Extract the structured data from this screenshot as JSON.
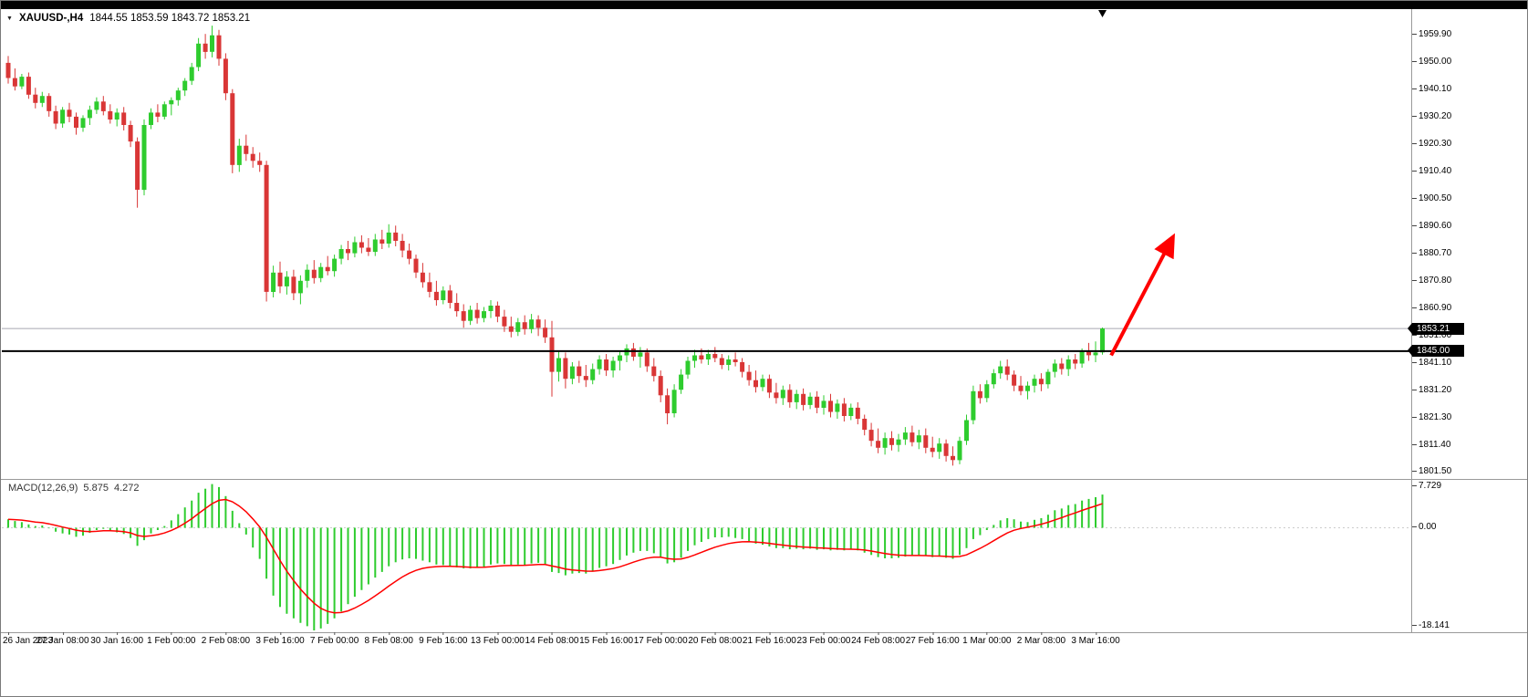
{
  "header": {
    "symbol_period": "XAUUSD-,H4",
    "ohlc": "1844.55 1853.59 1843.72 1853.21"
  },
  "badges": {
    "bid": "1853.21",
    "line": "1845.00"
  },
  "macd_panel": {
    "label": "MACD(12,26,9)",
    "value_main": "5.875",
    "value_signal": "4.272",
    "scale_top": "7.729",
    "scale_zero": "0.00",
    "scale_bottom": "-18.141"
  },
  "chart_data": {
    "type": "candlestick",
    "symbol": "XAUUSD-",
    "timeframe": "H4",
    "title": "XAUUSD-,H4",
    "last_bar": {
      "open": 1844.55,
      "high": 1853.59,
      "low": 1843.72,
      "close": 1853.21
    },
    "price_axis": {
      "min": 1800.0,
      "max": 1968.0,
      "labels": [
        "1959.90",
        "1950.00",
        "1940.10",
        "1930.20",
        "1920.30",
        "1910.40",
        "1900.50",
        "1890.60",
        "1880.70",
        "1870.80",
        "1860.90",
        "1851.00",
        "1841.10",
        "1831.20",
        "1821.30",
        "1811.40",
        "1801.50"
      ]
    },
    "bid_line": 1853.21,
    "hline": 1845.0,
    "arrow": {
      "from_bar": 162.3,
      "from_price": 1843.5,
      "to_bar": 171.3,
      "to_price": 1886.0
    },
    "colors": {
      "bull": "#2ecc2e",
      "bear": "#d93636",
      "macd_hist": "#2ecc2e",
      "signal": "#ff0000",
      "arrow": "#ff0000",
      "hline": "#000000",
      "bid": "#a8a8b0"
    },
    "time_labels": [
      {
        "bar": 0,
        "text": "26 Jan 2023"
      },
      {
        "bar": 8,
        "text": "27 Jan 08:00"
      },
      {
        "bar": 16,
        "text": "30 Jan 16:00"
      },
      {
        "bar": 24,
        "text": "1 Feb 00:00"
      },
      {
        "bar": 32,
        "text": "2 Feb 08:00"
      },
      {
        "bar": 40,
        "text": "3 Feb 16:00"
      },
      {
        "bar": 48,
        "text": "7 Feb 00:00"
      },
      {
        "bar": 56,
        "text": "8 Feb 08:00"
      },
      {
        "bar": 64,
        "text": "9 Feb 16:00"
      },
      {
        "bar": 72,
        "text": "13 Feb 00:00"
      },
      {
        "bar": 80,
        "text": "14 Feb 08:00"
      },
      {
        "bar": 88,
        "text": "15 Feb 16:00"
      },
      {
        "bar": 96,
        "text": "17 Feb 00:00"
      },
      {
        "bar": 104,
        "text": "20 Feb 08:00"
      },
      {
        "bar": 112,
        "text": "21 Feb 16:00"
      },
      {
        "bar": 120,
        "text": "23 Feb 00:00"
      },
      {
        "bar": 128,
        "text": "24 Feb 08:00"
      },
      {
        "bar": 136,
        "text": "27 Feb 16:00"
      },
      {
        "bar": 144,
        "text": "1 Mar 00:00"
      },
      {
        "bar": 152,
        "text": "2 Mar 08:00"
      },
      {
        "bar": 160,
        "text": "3 Mar 16:00"
      }
    ],
    "candles": [
      [
        1949.5,
        1952.0,
        1942.0,
        1944.0
      ],
      [
        1944.0,
        1947.5,
        1939.5,
        1941.0
      ],
      [
        1941.0,
        1945.5,
        1940.0,
        1944.5
      ],
      [
        1944.5,
        1946.0,
        1936.5,
        1938.0
      ],
      [
        1938.0,
        1940.5,
        1933.0,
        1935.0
      ],
      [
        1935.0,
        1939.0,
        1933.5,
        1937.5
      ],
      [
        1937.5,
        1938.5,
        1930.0,
        1932.0
      ],
      [
        1932.0,
        1934.0,
        1925.5,
        1927.5
      ],
      [
        1927.5,
        1933.5,
        1926.0,
        1932.5
      ],
      [
        1932.5,
        1935.0,
        1928.0,
        1930.0
      ],
      [
        1930.0,
        1931.5,
        1923.5,
        1926.0
      ],
      [
        1926.0,
        1930.5,
        1924.5,
        1929.5
      ],
      [
        1929.5,
        1934.0,
        1927.0,
        1932.5
      ],
      [
        1932.5,
        1937.0,
        1931.0,
        1935.5
      ],
      [
        1935.5,
        1937.5,
        1930.5,
        1932.0
      ],
      [
        1932.0,
        1934.5,
        1927.5,
        1929.0
      ],
      [
        1929.0,
        1933.0,
        1926.5,
        1931.5
      ],
      [
        1931.5,
        1933.5,
        1925.0,
        1927.0
      ],
      [
        1927.0,
        1928.5,
        1919.0,
        1921.0
      ],
      [
        1921.0,
        1922.5,
        1897.0,
        1903.5
      ],
      [
        1903.5,
        1929.0,
        1901.5,
        1927.0
      ],
      [
        1927.0,
        1933.0,
        1925.5,
        1931.5
      ],
      [
        1931.5,
        1934.5,
        1928.0,
        1930.0
      ],
      [
        1930.0,
        1935.5,
        1929.0,
        1934.5
      ],
      [
        1934.5,
        1937.0,
        1930.5,
        1936.0
      ],
      [
        1936.0,
        1940.5,
        1934.0,
        1939.5
      ],
      [
        1939.5,
        1944.0,
        1937.5,
        1943.0
      ],
      [
        1943.0,
        1949.5,
        1941.5,
        1948.0
      ],
      [
        1948.0,
        1958.5,
        1946.5,
        1956.5
      ],
      [
        1956.5,
        1960.0,
        1951.0,
        1953.5
      ],
      [
        1953.5,
        1963.0,
        1951.5,
        1959.5
      ],
      [
        1959.5,
        1961.5,
        1948.5,
        1951.0
      ],
      [
        1951.0,
        1953.0,
        1936.0,
        1938.5
      ],
      [
        1938.5,
        1940.0,
        1909.5,
        1912.5
      ],
      [
        1912.5,
        1922.0,
        1910.0,
        1919.5
      ],
      [
        1919.5,
        1923.5,
        1914.0,
        1916.5
      ],
      [
        1916.5,
        1919.0,
        1911.5,
        1914.0
      ],
      [
        1914.0,
        1917.0,
        1910.0,
        1912.5
      ],
      [
        1912.5,
        1914.0,
        1863.0,
        1866.5
      ],
      [
        1866.5,
        1876.0,
        1864.5,
        1873.5
      ],
      [
        1873.5,
        1877.5,
        1866.0,
        1868.5
      ],
      [
        1868.5,
        1874.0,
        1865.5,
        1872.0
      ],
      [
        1872.0,
        1874.5,
        1863.5,
        1866.0
      ],
      [
        1866.0,
        1872.5,
        1862.0,
        1870.5
      ],
      [
        1870.5,
        1876.5,
        1868.0,
        1874.5
      ],
      [
        1874.5,
        1878.0,
        1869.5,
        1871.5
      ],
      [
        1871.5,
        1877.0,
        1870.0,
        1875.5
      ],
      [
        1875.5,
        1879.5,
        1872.5,
        1874.0
      ],
      [
        1874.0,
        1880.0,
        1872.0,
        1878.5
      ],
      [
        1878.5,
        1883.5,
        1876.5,
        1882.0
      ],
      [
        1882.0,
        1885.0,
        1878.0,
        1880.5
      ],
      [
        1880.5,
        1886.5,
        1879.0,
        1884.5
      ],
      [
        1884.5,
        1887.0,
        1880.5,
        1882.5
      ],
      [
        1882.5,
        1886.0,
        1879.5,
        1881.0
      ],
      [
        1881.0,
        1887.5,
        1879.5,
        1885.5
      ],
      [
        1885.5,
        1889.0,
        1882.0,
        1884.0
      ],
      [
        1884.0,
        1891.0,
        1882.5,
        1888.0
      ],
      [
        1888.0,
        1890.5,
        1883.0,
        1885.0
      ],
      [
        1885.0,
        1887.5,
        1879.0,
        1881.5
      ],
      [
        1881.5,
        1884.0,
        1876.5,
        1878.5
      ],
      [
        1878.5,
        1880.0,
        1871.5,
        1873.5
      ],
      [
        1873.5,
        1877.0,
        1868.0,
        1870.0
      ],
      [
        1870.0,
        1873.5,
        1864.5,
        1866.5
      ],
      [
        1866.5,
        1870.5,
        1861.5,
        1863.5
      ],
      [
        1863.5,
        1868.5,
        1862.0,
        1867.0
      ],
      [
        1867.0,
        1869.0,
        1860.5,
        1862.5
      ],
      [
        1862.5,
        1866.0,
        1857.5,
        1859.5
      ],
      [
        1859.5,
        1862.0,
        1853.5,
        1856.0
      ],
      [
        1856.0,
        1861.5,
        1854.5,
        1860.0
      ],
      [
        1860.0,
        1862.5,
        1855.0,
        1857.0
      ],
      [
        1857.0,
        1861.0,
        1855.5,
        1859.5
      ],
      [
        1859.5,
        1863.5,
        1857.0,
        1861.5
      ],
      [
        1861.5,
        1863.0,
        1855.5,
        1857.5
      ],
      [
        1857.5,
        1860.0,
        1852.0,
        1854.0
      ],
      [
        1854.0,
        1857.5,
        1850.0,
        1852.0
      ],
      [
        1852.0,
        1857.0,
        1850.5,
        1855.5
      ],
      [
        1855.5,
        1858.0,
        1851.0,
        1853.0
      ],
      [
        1853.0,
        1858.5,
        1851.5,
        1856.5
      ],
      [
        1856.5,
        1858.0,
        1850.5,
        1853.5
      ],
      [
        1853.5,
        1856.5,
        1848.0,
        1850.0
      ],
      [
        1850.0,
        1856.0,
        1828.5,
        1837.5
      ],
      [
        1837.5,
        1845.0,
        1834.0,
        1842.5
      ],
      [
        1842.5,
        1844.5,
        1831.5,
        1835.0
      ],
      [
        1835.0,
        1841.0,
        1833.0,
        1839.5
      ],
      [
        1839.5,
        1841.5,
        1833.5,
        1836.0
      ],
      [
        1836.0,
        1840.0,
        1832.0,
        1834.5
      ],
      [
        1834.5,
        1840.5,
        1833.0,
        1838.5
      ],
      [
        1838.5,
        1843.5,
        1836.5,
        1842.0
      ],
      [
        1842.0,
        1844.0,
        1836.0,
        1838.0
      ],
      [
        1838.0,
        1843.0,
        1835.5,
        1841.5
      ],
      [
        1841.5,
        1845.0,
        1838.0,
        1843.5
      ],
      [
        1843.5,
        1847.5,
        1841.0,
        1846.0
      ],
      [
        1846.0,
        1848.0,
        1841.5,
        1843.0
      ],
      [
        1843.0,
        1846.5,
        1839.0,
        1844.5
      ],
      [
        1844.5,
        1846.0,
        1837.5,
        1839.5
      ],
      [
        1839.5,
        1842.5,
        1834.0,
        1836.0
      ],
      [
        1836.0,
        1838.0,
        1826.5,
        1829.0
      ],
      [
        1829.0,
        1831.5,
        1818.5,
        1822.5
      ],
      [
        1822.5,
        1833.0,
        1821.0,
        1831.0
      ],
      [
        1831.0,
        1838.5,
        1829.5,
        1836.5
      ],
      [
        1836.5,
        1843.0,
        1835.0,
        1841.5
      ],
      [
        1841.5,
        1845.5,
        1839.0,
        1843.5
      ],
      [
        1843.5,
        1846.0,
        1840.5,
        1842.0
      ],
      [
        1842.0,
        1845.5,
        1840.0,
        1844.0
      ],
      [
        1844.0,
        1846.5,
        1841.0,
        1842.5
      ],
      [
        1842.5,
        1844.0,
        1838.5,
        1840.0
      ],
      [
        1840.0,
        1843.5,
        1838.0,
        1842.0
      ],
      [
        1842.0,
        1844.5,
        1839.5,
        1841.0
      ],
      [
        1841.0,
        1842.5,
        1835.5,
        1837.5
      ],
      [
        1837.5,
        1840.0,
        1832.5,
        1834.5
      ],
      [
        1834.5,
        1838.0,
        1830.0,
        1832.0
      ],
      [
        1832.0,
        1836.5,
        1830.5,
        1835.0
      ],
      [
        1835.0,
        1836.5,
        1828.0,
        1830.0
      ],
      [
        1830.0,
        1833.5,
        1826.0,
        1828.0
      ],
      [
        1828.0,
        1832.5,
        1825.5,
        1831.0
      ],
      [
        1831.0,
        1833.0,
        1824.5,
        1826.5
      ],
      [
        1826.5,
        1831.0,
        1824.0,
        1829.5
      ],
      [
        1829.5,
        1831.5,
        1823.5,
        1825.5
      ],
      [
        1825.5,
        1830.0,
        1824.0,
        1828.5
      ],
      [
        1828.5,
        1830.5,
        1822.5,
        1824.5
      ],
      [
        1824.5,
        1829.0,
        1822.0,
        1827.0
      ],
      [
        1827.0,
        1829.5,
        1821.0,
        1823.0
      ],
      [
        1823.0,
        1827.5,
        1820.5,
        1826.0
      ],
      [
        1826.0,
        1828.0,
        1819.5,
        1821.5
      ],
      [
        1821.5,
        1826.0,
        1820.0,
        1824.5
      ],
      [
        1824.5,
        1826.5,
        1818.5,
        1820.5
      ],
      [
        1820.5,
        1822.0,
        1814.5,
        1816.5
      ],
      [
        1816.5,
        1819.0,
        1810.5,
        1812.5
      ],
      [
        1812.5,
        1817.0,
        1808.0,
        1810.0
      ],
      [
        1810.0,
        1815.5,
        1807.5,
        1813.5
      ],
      [
        1813.5,
        1816.0,
        1809.0,
        1811.0
      ],
      [
        1811.0,
        1815.0,
        1808.5,
        1813.0
      ],
      [
        1813.0,
        1817.5,
        1811.0,
        1815.5
      ],
      [
        1815.5,
        1818.0,
        1810.5,
        1812.0
      ],
      [
        1812.0,
        1816.5,
        1809.5,
        1814.5
      ],
      [
        1814.5,
        1817.0,
        1808.0,
        1810.0
      ],
      [
        1810.0,
        1814.0,
        1806.5,
        1808.5
      ],
      [
        1808.5,
        1813.5,
        1806.0,
        1811.5
      ],
      [
        1811.5,
        1813.0,
        1805.0,
        1807.0
      ],
      [
        1807.0,
        1810.5,
        1803.5,
        1805.5
      ],
      [
        1805.5,
        1814.0,
        1804.0,
        1812.5
      ],
      [
        1812.5,
        1822.0,
        1811.0,
        1820.0
      ],
      [
        1820.0,
        1832.5,
        1818.5,
        1830.5
      ],
      [
        1830.5,
        1833.0,
        1826.0,
        1828.0
      ],
      [
        1828.0,
        1834.5,
        1826.5,
        1833.0
      ],
      [
        1833.0,
        1838.5,
        1831.5,
        1837.0
      ],
      [
        1837.0,
        1841.5,
        1835.0,
        1839.5
      ],
      [
        1839.5,
        1842.0,
        1834.5,
        1836.5
      ],
      [
        1836.5,
        1838.0,
        1830.5,
        1832.5
      ],
      [
        1832.5,
        1836.0,
        1829.0,
        1830.5
      ],
      [
        1830.5,
        1834.0,
        1827.5,
        1832.5
      ],
      [
        1832.5,
        1836.5,
        1830.0,
        1835.0
      ],
      [
        1835.0,
        1837.0,
        1830.5,
        1833.0
      ],
      [
        1833.0,
        1838.5,
        1831.5,
        1837.5
      ],
      [
        1837.5,
        1842.0,
        1835.5,
        1840.5
      ],
      [
        1840.5,
        1842.5,
        1836.5,
        1838.5
      ],
      [
        1838.5,
        1843.5,
        1836.0,
        1842.0
      ],
      [
        1842.0,
        1844.0,
        1838.5,
        1840.5
      ],
      [
        1840.5,
        1846.0,
        1839.0,
        1845.0
      ],
      [
        1845.0,
        1848.0,
        1841.5,
        1843.5
      ],
      [
        1843.5,
        1848.5,
        1841.0,
        1844.5
      ],
      [
        1844.55,
        1853.59,
        1843.72,
        1853.21
      ]
    ],
    "macd": {
      "params": [
        12,
        26,
        9
      ],
      "last_main": 5.875,
      "last_signal": 4.272,
      "scale_max": 7.729,
      "scale_min": -18.141,
      "histogram": [
        1.5,
        1.2,
        1.0,
        0.6,
        0.3,
        0.4,
        -0.1,
        -0.7,
        -1.0,
        -1.2,
        -1.6,
        -1.4,
        -0.9,
        -0.4,
        -0.2,
        -0.5,
        -0.8,
        -1.1,
        -1.8,
        -3.2,
        -2.2,
        -1.0,
        -0.4,
        0.3,
        1.3,
        2.4,
        3.6,
        4.8,
        6.2,
        6.9,
        7.729,
        7.2,
        5.6,
        3.0,
        0.8,
        -1.2,
        -3.5,
        -5.5,
        -9.0,
        -12.0,
        -14.0,
        -15.2,
        -16.0,
        -16.8,
        -17.4,
        -18.141,
        -17.8,
        -17.0,
        -16.0,
        -14.8,
        -13.5,
        -12.2,
        -11.0,
        -10.0,
        -8.8,
        -7.8,
        -6.8,
        -6.1,
        -5.6,
        -5.4,
        -5.5,
        -5.8,
        -6.1,
        -6.5,
        -6.6,
        -6.8,
        -7.0,
        -7.2,
        -7.2,
        -7.1,
        -6.9,
        -6.5,
        -6.3,
        -6.4,
        -6.6,
        -6.5,
        -6.6,
        -6.3,
        -6.2,
        -6.5,
        -7.8,
        -8.0,
        -8.4,
        -8.1,
        -8.0,
        -8.1,
        -7.7,
        -7.1,
        -6.8,
        -6.4,
        -5.7,
        -4.9,
        -4.4,
        -4.1,
        -4.1,
        -4.5,
        -5.3,
        -6.3,
        -6.1,
        -5.3,
        -4.1,
        -3.1,
        -2.5,
        -2.0,
        -1.7,
        -1.7,
        -1.6,
        -1.8,
        -2.0,
        -2.4,
        -2.8,
        -3.0,
        -3.3,
        -3.6,
        -3.6,
        -3.8,
        -3.7,
        -3.8,
        -3.7,
        -3.9,
        -3.8,
        -4.0,
        -3.9,
        -4.0,
        -3.8,
        -4.0,
        -4.4,
        -4.8,
        -5.2,
        -5.4,
        -5.4,
        -5.3,
        -5.1,
        -5.0,
        -4.9,
        -5.0,
        -5.2,
        -5.1,
        -5.3,
        -5.5,
        -4.8,
        -3.6,
        -2.0,
        -1.3,
        -0.4,
        0.5,
        1.3,
        1.7,
        1.5,
        1.1,
        1.0,
        1.4,
        1.7,
        2.3,
        3.1,
        3.4,
        4.0,
        4.2,
        4.8,
        5.1,
        5.4,
        5.875
      ]
    }
  }
}
